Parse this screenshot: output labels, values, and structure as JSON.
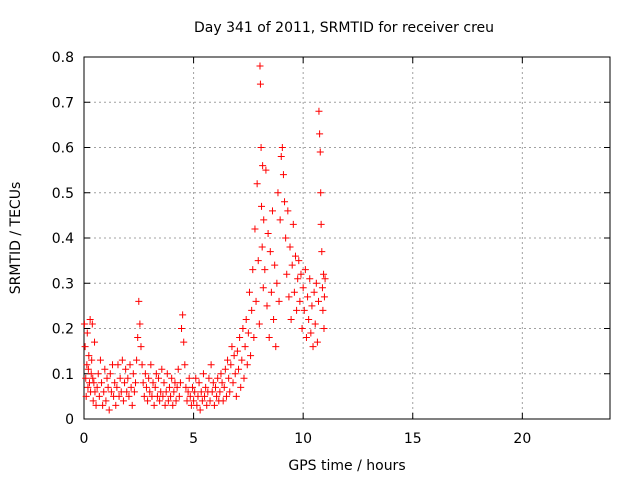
{
  "chart_data": {
    "type": "scatter",
    "title": "Day 341 of 2011, SRMTID for receiver creu",
    "xlabel": "GPS time / hours",
    "ylabel": "SRMTID / TECUs",
    "xlim": [
      0,
      24
    ],
    "ylim": [
      0,
      0.8
    ],
    "x_ticks": [
      0,
      5,
      10,
      15,
      20
    ],
    "y_ticks": [
      0,
      0.1,
      0.2,
      0.3,
      0.4,
      0.5,
      0.6,
      0.7,
      0.8
    ],
    "x_tick_labels": [
      "0",
      "5",
      "10",
      "15",
      "20"
    ],
    "y_tick_labels": [
      "0",
      "0.1",
      "0.2",
      "0.3",
      "0.4",
      "0.5",
      "0.6",
      "0.7",
      "0.8"
    ],
    "grid": true,
    "marker": "+",
    "series_color": "#ff0000",
    "series": [
      {
        "name": "SRMTID",
        "points": [
          [
            0.02,
            0.21
          ],
          [
            0.05,
            0.16
          ],
          [
            0.08,
            0.09
          ],
          [
            0.1,
            0.05
          ],
          [
            0.13,
            0.12
          ],
          [
            0.15,
            0.19
          ],
          [
            0.18,
            0.07
          ],
          [
            0.2,
            0.11
          ],
          [
            0.22,
            0.14
          ],
          [
            0.25,
            0.08
          ],
          [
            0.28,
            0.22
          ],
          [
            0.3,
            0.06
          ],
          [
            0.33,
            0.1
          ],
          [
            0.35,
            0.13
          ],
          [
            0.38,
            0.21
          ],
          [
            0.4,
            0.09
          ],
          [
            0.42,
            0.04
          ],
          [
            0.45,
            0.08
          ],
          [
            0.48,
            0.17
          ],
          [
            0.5,
            0.06
          ],
          [
            0.55,
            0.03
          ],
          [
            0.6,
            0.07
          ],
          [
            0.65,
            0.1
          ],
          [
            0.7,
            0.05
          ],
          [
            0.75,
            0.13
          ],
          [
            0.8,
            0.08
          ],
          [
            0.85,
            0.03
          ],
          [
            0.9,
            0.06
          ],
          [
            0.95,
            0.11
          ],
          [
            1.0,
            0.04
          ],
          [
            1.05,
            0.09
          ],
          [
            1.1,
            0.07
          ],
          [
            1.15,
            0.02
          ],
          [
            1.2,
            0.1
          ],
          [
            1.25,
            0.06
          ],
          [
            1.3,
            0.12
          ],
          [
            1.35,
            0.05
          ],
          [
            1.4,
            0.08
          ],
          [
            1.45,
            0.03
          ],
          [
            1.5,
            0.07
          ],
          [
            1.55,
            0.12
          ],
          [
            1.6,
            0.05
          ],
          [
            1.65,
            0.09
          ],
          [
            1.7,
            0.06
          ],
          [
            1.75,
            0.13
          ],
          [
            1.8,
            0.04
          ],
          [
            1.85,
            0.08
          ],
          [
            1.9,
            0.11
          ],
          [
            1.95,
            0.06
          ],
          [
            2.0,
            0.09
          ],
          [
            2.05,
            0.05
          ],
          [
            2.1,
            0.12
          ],
          [
            2.15,
            0.07
          ],
          [
            2.2,
            0.03
          ],
          [
            2.25,
            0.1
          ],
          [
            2.3,
            0.06
          ],
          [
            2.35,
            0.08
          ],
          [
            2.4,
            0.13
          ],
          [
            2.45,
            0.18
          ],
          [
            2.5,
            0.26
          ],
          [
            2.55,
            0.21
          ],
          [
            2.6,
            0.16
          ],
          [
            2.65,
            0.12
          ],
          [
            2.7,
            0.08
          ],
          [
            2.75,
            0.05
          ],
          [
            2.8,
            0.1
          ],
          [
            2.85,
            0.07
          ],
          [
            2.9,
            0.04
          ],
          [
            2.95,
            0.09
          ],
          [
            3.0,
            0.06
          ],
          [
            3.05,
            0.12
          ],
          [
            3.1,
            0.05
          ],
          [
            3.15,
            0.08
          ],
          [
            3.2,
            0.03
          ],
          [
            3.25,
            0.07
          ],
          [
            3.3,
            0.1
          ],
          [
            3.35,
            0.05
          ],
          [
            3.4,
            0.09
          ],
          [
            3.45,
            0.04
          ],
          [
            3.5,
            0.06
          ],
          [
            3.55,
            0.11
          ],
          [
            3.6,
            0.05
          ],
          [
            3.65,
            0.08
          ],
          [
            3.7,
            0.03
          ],
          [
            3.75,
            0.06
          ],
          [
            3.8,
            0.1
          ],
          [
            3.85,
            0.04
          ],
          [
            3.9,
            0.07
          ],
          [
            3.95,
            0.05
          ],
          [
            4.0,
            0.09
          ],
          [
            4.05,
            0.03
          ],
          [
            4.1,
            0.06
          ],
          [
            4.15,
            0.08
          ],
          [
            4.2,
            0.04
          ],
          [
            4.25,
            0.07
          ],
          [
            4.3,
            0.11
          ],
          [
            4.35,
            0.05
          ],
          [
            4.4,
            0.08
          ],
          [
            4.45,
            0.2
          ],
          [
            4.5,
            0.23
          ],
          [
            4.55,
            0.17
          ],
          [
            4.6,
            0.12
          ],
          [
            4.65,
            0.07
          ],
          [
            4.7,
            0.04
          ],
          [
            4.75,
            0.06
          ],
          [
            4.8,
            0.09
          ],
          [
            4.85,
            0.05
          ],
          [
            4.9,
            0.03
          ],
          [
            4.95,
            0.07
          ],
          [
            5.0,
            0.04
          ],
          [
            5.05,
            0.06
          ],
          [
            5.1,
            0.09
          ],
          [
            5.15,
            0.03
          ],
          [
            5.2,
            0.05
          ],
          [
            5.25,
            0.08
          ],
          [
            5.3,
            0.02
          ],
          [
            5.35,
            0.06
          ],
          [
            5.4,
            0.04
          ],
          [
            5.45,
            0.1
          ],
          [
            5.5,
            0.05
          ],
          [
            5.55,
            0.07
          ],
          [
            5.6,
            0.03
          ],
          [
            5.65,
            0.06
          ],
          [
            5.7,
            0.09
          ],
          [
            5.75,
            0.04
          ],
          [
            5.8,
            0.12
          ],
          [
            5.85,
            0.06
          ],
          [
            5.9,
            0.08
          ],
          [
            5.95,
            0.03
          ],
          [
            6.0,
            0.07
          ],
          [
            6.05,
            0.05
          ],
          [
            6.1,
            0.09
          ],
          [
            6.15,
            0.04
          ],
          [
            6.2,
            0.06
          ],
          [
            6.25,
            0.1
          ],
          [
            6.3,
            0.08
          ],
          [
            6.35,
            0.04
          ],
          [
            6.4,
            0.07
          ],
          [
            6.45,
            0.11
          ],
          [
            6.5,
            0.05
          ],
          [
            6.55,
            0.13
          ],
          [
            6.6,
            0.09
          ],
          [
            6.65,
            0.06
          ],
          [
            6.7,
            0.12
          ],
          [
            6.75,
            0.16
          ],
          [
            6.8,
            0.08
          ],
          [
            6.85,
            0.14
          ],
          [
            6.9,
            0.1
          ],
          [
            6.95,
            0.05
          ],
          [
            7.0,
            0.15
          ],
          [
            7.05,
            0.11
          ],
          [
            7.1,
            0.18
          ],
          [
            7.15,
            0.07
          ],
          [
            7.2,
            0.13
          ],
          [
            7.25,
            0.2
          ],
          [
            7.3,
            0.09
          ],
          [
            7.35,
            0.16
          ],
          [
            7.4,
            0.22
          ],
          [
            7.45,
            0.12
          ],
          [
            7.5,
            0.19
          ],
          [
            7.55,
            0.28
          ],
          [
            7.6,
            0.14
          ],
          [
            7.65,
            0.24
          ],
          [
            7.7,
            0.33
          ],
          [
            7.75,
            0.18
          ],
          [
            7.8,
            0.42
          ],
          [
            7.85,
            0.26
          ],
          [
            7.9,
            0.52
          ],
          [
            7.95,
            0.35
          ],
          [
            8.0,
            0.21
          ],
          [
            8.03,
            0.78
          ],
          [
            8.05,
            0.74
          ],
          [
            8.08,
            0.6
          ],
          [
            8.1,
            0.47
          ],
          [
            8.13,
            0.38
          ],
          [
            8.15,
            0.56
          ],
          [
            8.18,
            0.29
          ],
          [
            8.2,
            0.44
          ],
          [
            8.25,
            0.33
          ],
          [
            8.3,
            0.55
          ],
          [
            8.35,
            0.25
          ],
          [
            8.4,
            0.41
          ],
          [
            8.45,
            0.18
          ],
          [
            8.5,
            0.37
          ],
          [
            8.55,
            0.28
          ],
          [
            8.6,
            0.46
          ],
          [
            8.65,
            0.22
          ],
          [
            8.7,
            0.34
          ],
          [
            8.75,
            0.16
          ],
          [
            8.8,
            0.3
          ],
          [
            8.85,
            0.5
          ],
          [
            8.9,
            0.26
          ],
          [
            8.95,
            0.44
          ],
          [
            9.0,
            0.58
          ],
          [
            9.05,
            0.6
          ],
          [
            9.1,
            0.54
          ],
          [
            9.15,
            0.48
          ],
          [
            9.2,
            0.4
          ],
          [
            9.25,
            0.32
          ],
          [
            9.3,
            0.46
          ],
          [
            9.35,
            0.27
          ],
          [
            9.4,
            0.38
          ],
          [
            9.45,
            0.22
          ],
          [
            9.5,
            0.34
          ],
          [
            9.55,
            0.43
          ],
          [
            9.6,
            0.28
          ],
          [
            9.65,
            0.36
          ],
          [
            9.7,
            0.24
          ],
          [
            9.75,
            0.31
          ],
          [
            9.8,
            0.35
          ],
          [
            9.85,
            0.26
          ],
          [
            9.9,
            0.32
          ],
          [
            9.95,
            0.2
          ],
          [
            10.0,
            0.29
          ],
          [
            10.05,
            0.24
          ],
          [
            10.1,
            0.33
          ],
          [
            10.15,
            0.18
          ],
          [
            10.2,
            0.27
          ],
          [
            10.25,
            0.22
          ],
          [
            10.3,
            0.31
          ],
          [
            10.35,
            0.19
          ],
          [
            10.4,
            0.25
          ],
          [
            10.45,
            0.16
          ],
          [
            10.5,
            0.28
          ],
          [
            10.55,
            0.21
          ],
          [
            10.6,
            0.3
          ],
          [
            10.65,
            0.17
          ],
          [
            10.7,
            0.26
          ],
          [
            10.72,
            0.68
          ],
          [
            10.75,
            0.63
          ],
          [
            10.78,
            0.59
          ],
          [
            10.8,
            0.5
          ],
          [
            10.82,
            0.43
          ],
          [
            10.85,
            0.37
          ],
          [
            10.88,
            0.29
          ],
          [
            10.9,
            0.24
          ],
          [
            10.93,
            0.32
          ],
          [
            10.95,
            0.2
          ],
          [
            10.97,
            0.27
          ],
          [
            11.0,
            0.31
          ]
        ]
      }
    ]
  }
}
